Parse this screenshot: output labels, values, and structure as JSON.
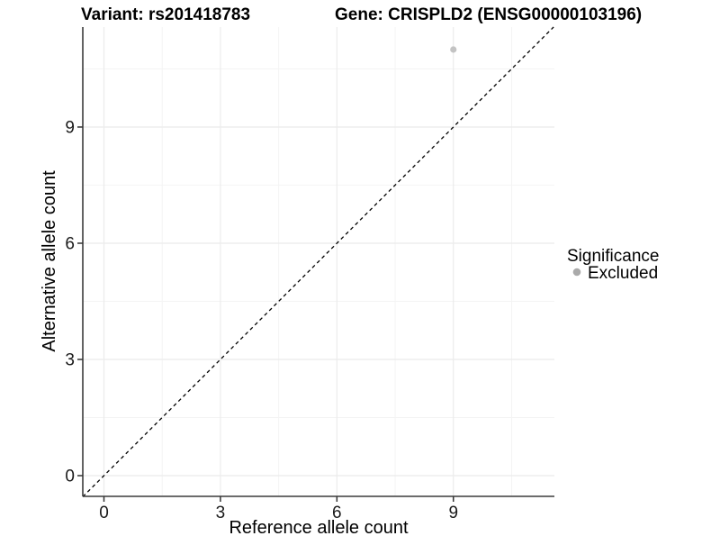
{
  "chart_data": {
    "type": "scatter",
    "titles": {
      "left": "Variant: rs201418783",
      "right": "Gene: CRISPLD2 (ENSG00000103196)"
    },
    "xlabel": "Reference allele count",
    "ylabel": "Alternative allele count",
    "xlim": [
      -0.55,
      11.6
    ],
    "ylim": [
      -0.55,
      11.6
    ],
    "xticks": [
      0,
      3,
      6,
      9
    ],
    "yticks": [
      0,
      3,
      6,
      9
    ],
    "xminor": [
      1.5,
      4.5,
      7.5,
      10.5
    ],
    "yminor": [
      1.5,
      4.5,
      7.5,
      10.5
    ],
    "grid": "major and minor gridlines on white panel",
    "points": [
      {
        "x": 9,
        "y": 11,
        "significance": "Excluded"
      }
    ],
    "identity_line": {
      "slope": 1,
      "intercept": 0,
      "style": "dashed",
      "color": "#000000"
    },
    "legend": {
      "title": "Significance",
      "position": "right-middle",
      "entries": [
        {
          "label": "Excluded",
          "marker": "circle",
          "color": "#b4b4b4"
        }
      ]
    },
    "colors": {
      "point": "#c3c3c3",
      "legend_point": "#aaaaaa",
      "grid_major": "#ebebeb",
      "grid_minor": "#f4f4f4",
      "axis_line": "#3c3c3c",
      "tick_mark": "#333333",
      "dashed_line": "#000000",
      "background": "#ffffff"
    }
  }
}
